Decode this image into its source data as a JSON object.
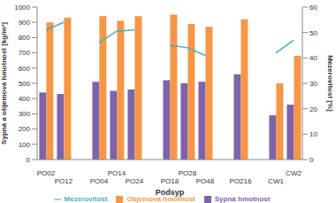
{
  "chart_data": {
    "type": "bar",
    "categories": [
      "PO02",
      "PO12",
      null,
      "PO04",
      "PO14",
      "PO24",
      null,
      "PO18",
      "PO28",
      "PO48",
      null,
      "PO216",
      null,
      "CW1",
      "CW2"
    ],
    "series": [
      {
        "name": "Sypná hmotnost",
        "color": "#7f63a8",
        "values": [
          440,
          430,
          null,
          510,
          450,
          460,
          null,
          520,
          500,
          510,
          null,
          560,
          null,
          290,
          360
        ]
      },
      {
        "name": "Objemová hmotnost",
        "color": "#f79646",
        "values": [
          900,
          930,
          null,
          940,
          910,
          940,
          null,
          950,
          890,
          870,
          null,
          920,
          null,
          500,
          680
        ]
      },
      {
        "name": "Mezerovitost",
        "type": "line",
        "axis": "y2",
        "color": "#4bacc6",
        "values": [
          51,
          54,
          null,
          46,
          50.5,
          51,
          null,
          45,
          44,
          41,
          null,
          null,
          null,
          42,
          47
        ]
      }
    ],
    "x_label": "Podsyp",
    "y_label": "Sypná a objemová hmotnost [kg/m³]",
    "y2_label": "Mezerovitost [%]",
    "ylim": [
      0,
      1000
    ],
    "yticks": [
      0,
      100,
      200,
      300,
      400,
      500,
      600,
      700,
      800,
      900,
      1000
    ],
    "y2lim": [
      0,
      60
    ],
    "y2ticks": [
      0,
      10,
      20,
      30,
      40,
      50,
      60
    ],
    "grid": false,
    "legend": "bottom"
  }
}
